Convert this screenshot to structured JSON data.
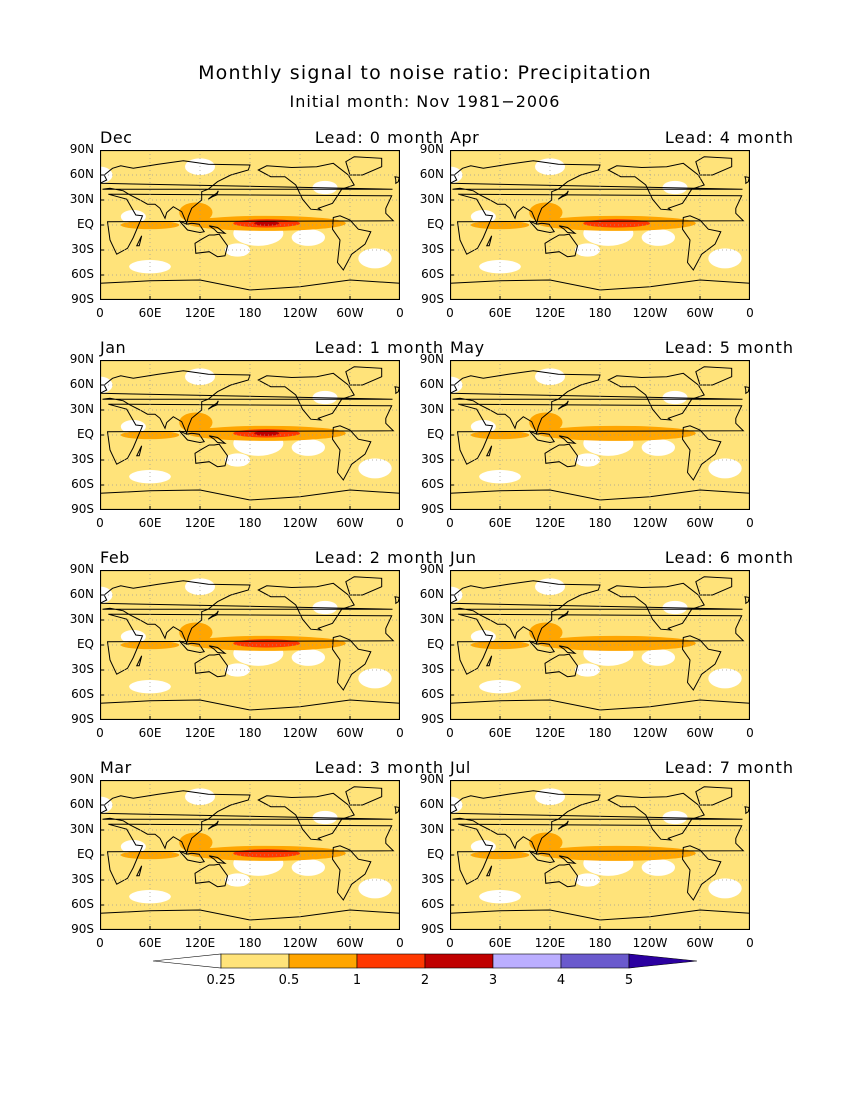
{
  "title": "Monthly signal to noise ratio: Precipitation",
  "subtitle": "Initial month: Nov 1981−2006",
  "chart_data": {
    "type": "heatmap",
    "title": "Monthly signal to noise ratio: Precipitation",
    "subtitle": "Initial month: Nov 1981−2006",
    "panels": [
      {
        "month": "Dec",
        "lead": "Lead: 0 month",
        "enso_max": 2
      },
      {
        "month": "Apr",
        "lead": "Lead: 4 month",
        "enso_max": 1
      },
      {
        "month": "Jan",
        "lead": "Lead: 1 month",
        "enso_max": 2
      },
      {
        "month": "May",
        "lead": "Lead: 5 month",
        "enso_max": 0.5
      },
      {
        "month": "Feb",
        "lead": "Lead: 2 month",
        "enso_max": 1
      },
      {
        "month": "Jun",
        "lead": "Lead: 6 month",
        "enso_max": 0.5
      },
      {
        "month": "Mar",
        "lead": "Lead: 3 month",
        "enso_max": 1
      },
      {
        "month": "Jul",
        "lead": "Lead: 7 month",
        "enso_max": 0.5
      }
    ],
    "y_ticks": [
      "90N",
      "60N",
      "30N",
      "EQ",
      "30S",
      "60S",
      "90S"
    ],
    "x_ticks": [
      "0",
      "60E",
      "120E",
      "180",
      "120W",
      "60W",
      "0"
    ],
    "colorbar": {
      "levels": [
        "0.25",
        "0.5",
        "1",
        "2",
        "3",
        "4",
        "5"
      ],
      "colors": [
        "#ffffff",
        "#ffe37a",
        "#ffa500",
        "#ff3800",
        "#c00000",
        "#bbaeff",
        "#6a5acd",
        "#2b00a0"
      ]
    }
  }
}
